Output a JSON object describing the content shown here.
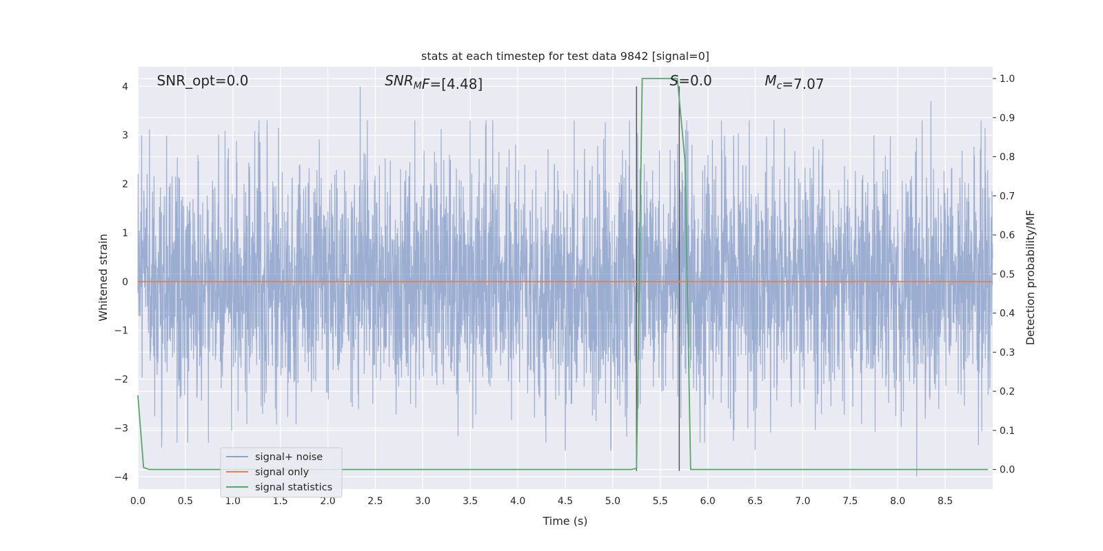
{
  "chart_data": {
    "type": "line",
    "title": "stats at each timestep for test data 9842 [signal=0]",
    "xlabel": "Time (s)",
    "ylabel_left": "Whitened strain",
    "ylabel_right": "Detection probability/MF",
    "xlim": [
      0,
      9.0
    ],
    "ylim_left": [
      -4.25,
      4.4
    ],
    "ylim_right": [
      -0.05,
      1.03
    ],
    "x_ticks": [
      "0.0",
      "0.5",
      "1.0",
      "1.5",
      "2.0",
      "2.5",
      "3.0",
      "3.5",
      "4.0",
      "4.5",
      "5.0",
      "5.5",
      "6.0",
      "6.5",
      "7.0",
      "7.5",
      "8.0",
      "8.5"
    ],
    "y_ticks_left": [
      "−4",
      "−3",
      "−2",
      "−1",
      "0",
      "1",
      "2",
      "3",
      "4"
    ],
    "y_ticks_right": [
      "0.0",
      "0.1",
      "0.2",
      "0.3",
      "0.4",
      "0.5",
      "0.6",
      "0.7",
      "0.8",
      "0.9",
      "1.0"
    ],
    "grid": true,
    "background": "#eaeaf2",
    "annotations": [
      {
        "parts": [
          {
            "t": "SNR_opt=0.0",
            "i": false
          }
        ],
        "x": 0.2
      },
      {
        "parts": [
          {
            "t": "SNR",
            "i": true
          },
          {
            "t": "M",
            "i": true,
            "sub": true
          },
          {
            "t": "F",
            "i": true
          },
          {
            "t": "=[4.48]",
            "i": false
          }
        ],
        "x": 2.6
      },
      {
        "parts": [
          {
            "t": "S",
            "i": true
          },
          {
            "t": "=0.0",
            "i": false
          }
        ],
        "x": 5.6
      },
      {
        "parts": [
          {
            "t": "M",
            "i": true
          },
          {
            "t": "c",
            "i": true,
            "sub": true
          },
          {
            "t": "=7.07",
            "i": false
          }
        ],
        "x": 6.6
      }
    ],
    "vlines": [
      {
        "x": 5.25,
        "y0": -3.88,
        "y1": 4.0,
        "color": "#555555"
      },
      {
        "x": 5.7,
        "y0": -3.88,
        "y1": 4.0,
        "color": "#555555"
      }
    ],
    "series": [
      {
        "name": "signal+ noise",
        "color": "#4c72b0",
        "axis": "left",
        "style": "noise",
        "noise_std": 1.2,
        "samples": 3600,
        "spikes": [
          {
            "x": 2.34,
            "y": 4.0
          },
          {
            "x": 8.35,
            "y": 3.7
          },
          {
            "x": 8.2,
            "y": -4.0
          },
          {
            "x": 0.25,
            "y": -3.4
          },
          {
            "x": 4.5,
            "y": -3.45
          },
          {
            "x": 6.5,
            "y": -3.45
          },
          {
            "x": 8.85,
            "y": -3.35
          },
          {
            "x": 0.04,
            "y": 3.0
          },
          {
            "x": 1.27,
            "y": 3.05
          },
          {
            "x": 8.92,
            "y": 3.15
          },
          {
            "x": 7.75,
            "y": 3.0
          },
          {
            "x": 4.98,
            "y": -3.45
          }
        ]
      },
      {
        "name": "signal only",
        "color": "#dd8452",
        "axis": "left",
        "style": "line",
        "x": [
          0.0,
          9.0
        ],
        "y": [
          0.0,
          0.0
        ]
      },
      {
        "name": "signal statistics",
        "color": "#55a868",
        "axis": "right",
        "style": "line",
        "x": [
          0.0,
          0.06,
          0.12,
          1.0,
          2.0,
          3.0,
          4.0,
          5.0,
          5.2,
          5.25,
          5.31,
          5.68,
          5.76,
          5.82,
          6.5,
          7.5,
          8.5,
          8.95
        ],
        "y": [
          0.19,
          0.005,
          0.0,
          0.0,
          0.0,
          0.0,
          0.0,
          0.0,
          0.0,
          0.003,
          1.0,
          1.0,
          0.79,
          0.0,
          0.0,
          0.0,
          0.0,
          0.0
        ]
      }
    ]
  }
}
